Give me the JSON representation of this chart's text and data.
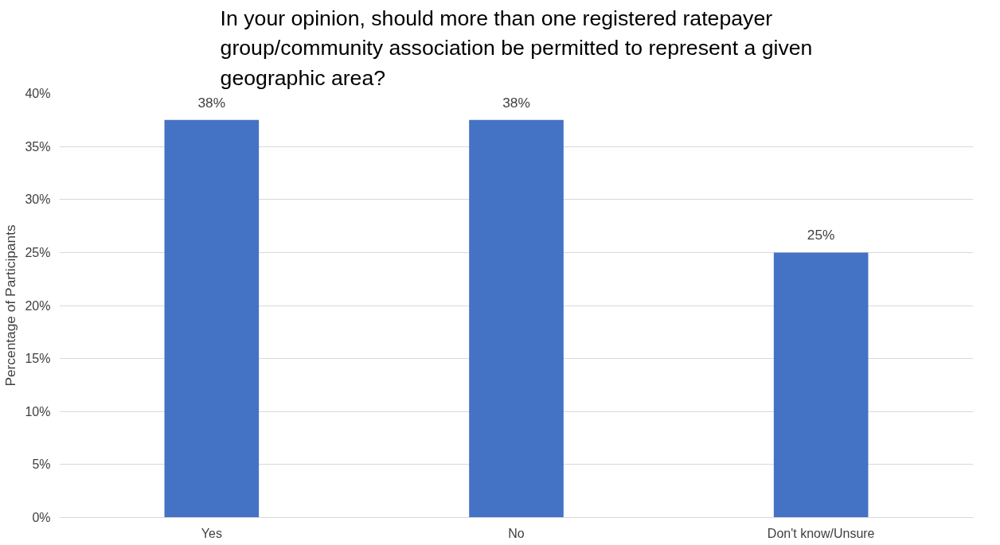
{
  "chart_data": {
    "type": "bar",
    "title": "In your opinion, should more than one registered ratepayer group/community association be permitted to represent a given geographic area?",
    "ylabel": "Percentage of Participants",
    "categories": [
      "Yes",
      "No",
      "Don't know/Unsure"
    ],
    "values": [
      37.5,
      37.5,
      25
    ],
    "value_labels": [
      "38%",
      "38%",
      "25%"
    ],
    "color": "#4472c4",
    "ylim": [
      0,
      40
    ],
    "yticks": [
      {
        "value": 0,
        "label": "0%"
      },
      {
        "value": 5,
        "label": "5%"
      },
      {
        "value": 10,
        "label": "10%"
      },
      {
        "value": 15,
        "label": "15%"
      },
      {
        "value": 20,
        "label": "20%"
      },
      {
        "value": 25,
        "label": "25%"
      },
      {
        "value": 30,
        "label": "30%"
      },
      {
        "value": 35,
        "label": "35%"
      },
      {
        "value": 40,
        "label": "40%"
      }
    ],
    "grid": "y"
  }
}
